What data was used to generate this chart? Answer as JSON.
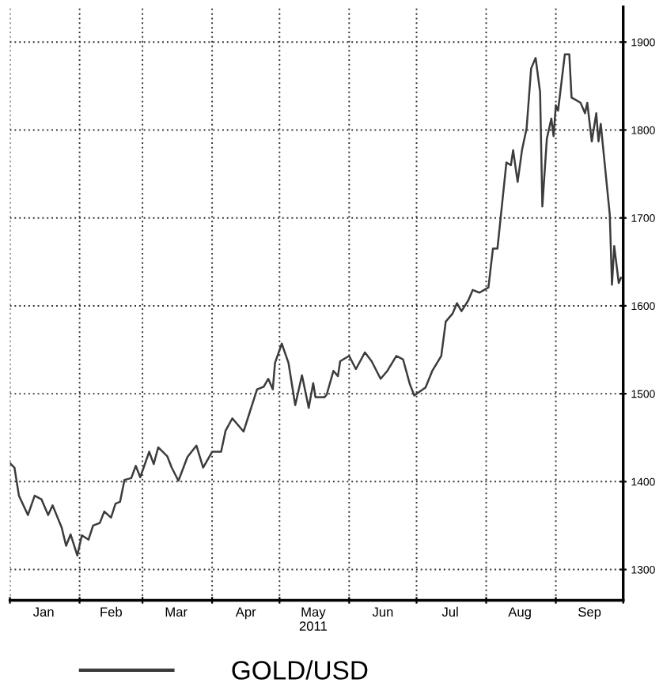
{
  "chart_data": {
    "type": "line",
    "grid": true,
    "legend": "bottom",
    "line_style": "solid",
    "xlim": [
      "2011-01-01",
      "2011-10-01"
    ],
    "ylim": [
      1265,
      1940
    ],
    "xticks": [
      {
        "value": "2011-01-01",
        "label": null
      },
      {
        "value": "2011-01-16",
        "label": "Jan"
      },
      {
        "value": "2011-02-01",
        "label": null
      },
      {
        "value": "2011-02-15",
        "label": "Feb"
      },
      {
        "value": "2011-03-01",
        "label": null
      },
      {
        "value": "2011-03-16",
        "label": "Mar"
      },
      {
        "value": "2011-04-01",
        "label": null
      },
      {
        "value": "2011-04-16",
        "label": "Apr"
      },
      {
        "value": "2011-05-01",
        "label": null
      },
      {
        "value": "2011-05-16",
        "label": "May\n2011"
      },
      {
        "value": "2011-06-01",
        "label": null
      },
      {
        "value": "2011-06-16",
        "label": "Jun"
      },
      {
        "value": "2011-07-01",
        "label": null
      },
      {
        "value": "2011-07-16",
        "label": "Jul"
      },
      {
        "value": "2011-08-01",
        "label": null
      },
      {
        "value": "2011-08-16",
        "label": "Aug"
      },
      {
        "value": "2011-09-01",
        "label": null
      },
      {
        "value": "2011-09-16",
        "label": "Sep"
      },
      {
        "value": "2011-10-01",
        "label": null
      }
    ],
    "yticks": [
      1300,
      1400,
      1500,
      1600,
      1700,
      1800,
      1900
    ],
    "series": [
      {
        "name": "GOLD/USD",
        "color": "#3c3c3c",
        "x": [
          "2011-01-01",
          "2011-01-03",
          "2011-01-05",
          "2011-01-09",
          "2011-01-12",
          "2011-01-15",
          "2011-01-18",
          "2011-01-20",
          "2011-01-24",
          "2011-01-26",
          "2011-01-28",
          "2011-01-31",
          "2011-02-02",
          "2011-02-05",
          "2011-02-07",
          "2011-02-10",
          "2011-02-12",
          "2011-02-15",
          "2011-02-17",
          "2011-02-19",
          "2011-02-21",
          "2011-02-24",
          "2011-02-26",
          "2011-02-28",
          "2011-03-04",
          "2011-03-06",
          "2011-03-08",
          "2011-03-12",
          "2011-03-14",
          "2011-03-17",
          "2011-03-21",
          "2011-03-25",
          "2011-03-28",
          "2011-04-01",
          "2011-04-05",
          "2011-04-07",
          "2011-04-10",
          "2011-04-15",
          "2011-04-18",
          "2011-04-21",
          "2011-04-24",
          "2011-04-26",
          "2011-04-28",
          "2011-04-29",
          "2011-05-02",
          "2011-05-05",
          "2011-05-08",
          "2011-05-11",
          "2011-05-14",
          "2011-05-16",
          "2011-05-17",
          "2011-05-21",
          "2011-05-22",
          "2011-05-25",
          "2011-05-27",
          "2011-05-28",
          "2011-06-01",
          "2011-06-04",
          "2011-06-08",
          "2011-06-11",
          "2011-06-15",
          "2011-06-18",
          "2011-06-22",
          "2011-06-25",
          "2011-06-28",
          "2011-06-30",
          "2011-07-05",
          "2011-07-08",
          "2011-07-12",
          "2011-07-14",
          "2011-07-17",
          "2011-07-19",
          "2011-07-21",
          "2011-07-24",
          "2011-07-26",
          "2011-07-29",
          "2011-08-02",
          "2011-08-04",
          "2011-08-06",
          "2011-08-10",
          "2011-08-12",
          "2011-08-13",
          "2011-08-15",
          "2011-08-17",
          "2011-08-19",
          "2011-08-21",
          "2011-08-23",
          "2011-08-25",
          "2011-08-26",
          "2011-08-28",
          "2011-08-30",
          "2011-08-31",
          "2011-09-01",
          "2011-09-02",
          "2011-09-05",
          "2011-09-07",
          "2011-09-08",
          "2011-09-10",
          "2011-09-12",
          "2011-09-14",
          "2011-09-15",
          "2011-09-17",
          "2011-09-19",
          "2011-09-20",
          "2011-09-21",
          "2011-09-25",
          "2011-09-26",
          "2011-09-27",
          "2011-09-29",
          "2011-09-30"
        ],
        "values": [
          1421,
          1416,
          1384,
          1362,
          1384,
          1380,
          1362,
          1373,
          1348,
          1327,
          1340,
          1316,
          1339,
          1334,
          1350,
          1353,
          1366,
          1359,
          1375,
          1377,
          1402,
          1404,
          1418,
          1405,
          1434,
          1420,
          1439,
          1429,
          1416,
          1401,
          1428,
          1441,
          1416,
          1434,
          1434,
          1458,
          1472,
          1457,
          1481,
          1505,
          1508,
          1517,
          1505,
          1535,
          1557,
          1535,
          1487,
          1521,
          1484,
          1512,
          1496,
          1496,
          1499,
          1526,
          1520,
          1537,
          1543,
          1528,
          1547,
          1537,
          1517,
          1526,
          1543,
          1539,
          1511,
          1498,
          1507,
          1526,
          1543,
          1582,
          1591,
          1603,
          1594,
          1606,
          1618,
          1615,
          1621,
          1665,
          1665,
          1763,
          1760,
          1777,
          1741,
          1778,
          1802,
          1870,
          1882,
          1843,
          1713,
          1790,
          1813,
          1793,
          1828,
          1822,
          1886,
          1886,
          1837,
          1834,
          1831,
          1819,
          1831,
          1787,
          1819,
          1787,
          1807,
          1704,
          1624,
          1668,
          1626,
          1632
        ]
      }
    ]
  }
}
